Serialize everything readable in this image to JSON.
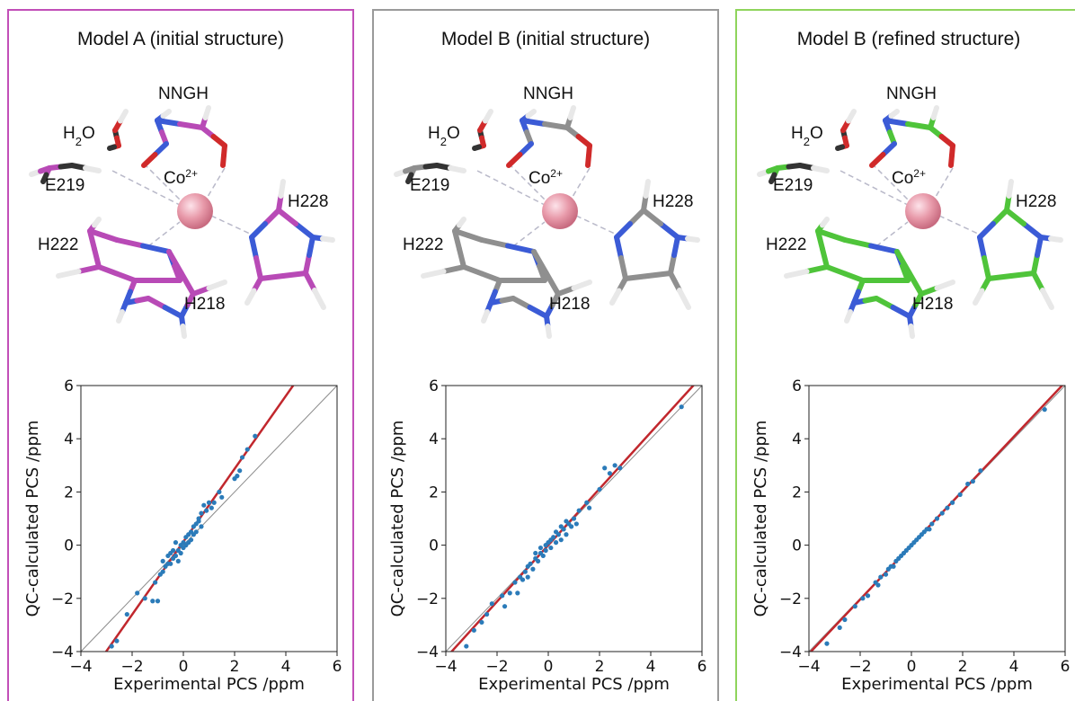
{
  "panels": [
    {
      "title": "Model A (initial structure)",
      "border_color": "#c24fb8",
      "accent_color": "#b84ab6",
      "molecule_labels": {
        "ligand": "NNGH",
        "water": "H2O",
        "metal": "Co2+",
        "e219": "E219",
        "h222": "H222",
        "h228": "H228",
        "h218": "H218"
      }
    },
    {
      "title": "Model B (initial structure)",
      "border_color": "#9a9a9a",
      "accent_color": "#8f8f8f",
      "molecule_labels": {
        "ligand": "NNGH",
        "water": "H2O",
        "metal": "Co2+",
        "e219": "E219",
        "h222": "H222",
        "h228": "H228",
        "h218": "H218"
      }
    },
    {
      "title": "Model B (refined structure)",
      "border_color": "#8fd45c",
      "accent_color": "#4fc43a",
      "molecule_labels": {
        "ligand": "NNGH",
        "water": "H2O",
        "metal": "Co2+",
        "e219": "E219",
        "h222": "H222",
        "h228": "H228",
        "h218": "H218"
      }
    }
  ],
  "colors": {
    "points": "#2b7bb9",
    "fit_line": "#c1272d",
    "identity_line": "#8a8a8a",
    "nitrogen": "#3b5bd6",
    "oxygen": "#d02a2a",
    "hydrogen": "#e8e8e8",
    "metal": "#e89aaa"
  },
  "chart_data": [
    {
      "type": "scatter",
      "xlabel": "Experimental PCS /ppm",
      "ylabel": "QC-calculated PCS /ppm",
      "xlim": [
        -4,
        6
      ],
      "ylim": [
        -4,
        6
      ],
      "xticks": [
        "−4",
        "−2",
        "0",
        "2",
        "4",
        "6"
      ],
      "yticks": [
        "−4",
        "−2",
        "0",
        "2",
        "4",
        "6"
      ],
      "fit_line": {
        "slope": 1.37,
        "intercept": 0.13
      },
      "identity_line": true,
      "points": [
        [
          -2.8,
          -3.8
        ],
        [
          -2.6,
          -3.6
        ],
        [
          -2.2,
          -2.6
        ],
        [
          -1.8,
          -1.8
        ],
        [
          -1.5,
          -2.0
        ],
        [
          -1.2,
          -2.1
        ],
        [
          -1.1,
          -1.4
        ],
        [
          -1.0,
          -2.1
        ],
        [
          -0.9,
          -1.1
        ],
        [
          -0.8,
          -1.0
        ],
        [
          -0.8,
          -0.6
        ],
        [
          -0.7,
          -0.8
        ],
        [
          -0.6,
          -0.7
        ],
        [
          -0.6,
          -0.4
        ],
        [
          -0.5,
          -0.7
        ],
        [
          -0.5,
          -0.3
        ],
        [
          -0.4,
          -0.5
        ],
        [
          -0.4,
          -0.2
        ],
        [
          -0.3,
          -0.4
        ],
        [
          -0.3,
          0.1
        ],
        [
          -0.2,
          -0.2
        ],
        [
          -0.2,
          -0.6
        ],
        [
          -0.1,
          0.0
        ],
        [
          -0.1,
          -0.3
        ],
        [
          0.0,
          0.1
        ],
        [
          0.0,
          -0.1
        ],
        [
          0.1,
          0.3
        ],
        [
          0.1,
          0.0
        ],
        [
          0.2,
          0.4
        ],
        [
          0.2,
          0.1
        ],
        [
          0.3,
          0.5
        ],
        [
          0.3,
          0.2
        ],
        [
          0.4,
          0.7
        ],
        [
          0.4,
          0.4
        ],
        [
          0.5,
          0.8
        ],
        [
          0.5,
          0.5
        ],
        [
          0.6,
          0.9
        ],
        [
          0.6,
          1.0
        ],
        [
          0.7,
          1.2
        ],
        [
          0.7,
          0.7
        ],
        [
          0.8,
          1.5
        ],
        [
          0.9,
          1.3
        ],
        [
          1.0,
          1.6
        ],
        [
          1.1,
          1.4
        ],
        [
          1.2,
          1.6
        ],
        [
          1.4,
          2.0
        ],
        [
          1.5,
          1.8
        ],
        [
          2.0,
          2.5
        ],
        [
          2.1,
          2.6
        ],
        [
          2.2,
          2.8
        ],
        [
          2.3,
          3.3
        ],
        [
          2.5,
          3.6
        ],
        [
          2.8,
          4.1
        ]
      ]
    },
    {
      "type": "scatter",
      "xlabel": "Experimental PCS /ppm",
      "ylabel": "QC-calculated PCS /ppm",
      "xlim": [
        -4,
        6
      ],
      "ylim": [
        -4,
        6
      ],
      "xticks": [
        "−4",
        "−2",
        "0",
        "2",
        "4",
        "6"
      ],
      "yticks": [
        "−4",
        "−2",
        "0",
        "2",
        "4",
        "6"
      ],
      "fit_line": {
        "slope": 1.06,
        "intercept": 0.0
      },
      "identity_line": true,
      "points": [
        [
          -3.2,
          -3.8
        ],
        [
          -2.9,
          -3.2
        ],
        [
          -2.6,
          -2.9
        ],
        [
          -2.4,
          -2.6
        ],
        [
          -2.2,
          -2.2
        ],
        [
          -1.8,
          -1.9
        ],
        [
          -1.7,
          -2.3
        ],
        [
          -1.5,
          -1.8
        ],
        [
          -1.3,
          -1.4
        ],
        [
          -1.2,
          -1.8
        ],
        [
          -1.1,
          -1.2
        ],
        [
          -1.0,
          -1.3
        ],
        [
          -0.9,
          -1.0
        ],
        [
          -0.8,
          -0.8
        ],
        [
          -0.8,
          -1.2
        ],
        [
          -0.7,
          -0.7
        ],
        [
          -0.6,
          -0.9
        ],
        [
          -0.5,
          -0.5
        ],
        [
          -0.5,
          -0.3
        ],
        [
          -0.4,
          -0.6
        ],
        [
          -0.3,
          -0.3
        ],
        [
          -0.3,
          -0.1
        ],
        [
          -0.2,
          -0.4
        ],
        [
          -0.1,
          0.0
        ],
        [
          -0.1,
          -0.2
        ],
        [
          0.0,
          0.1
        ],
        [
          0.1,
          -0.1
        ],
        [
          0.1,
          0.2
        ],
        [
          0.2,
          0.3
        ],
        [
          0.3,
          0.1
        ],
        [
          0.3,
          0.5
        ],
        [
          0.4,
          0.4
        ],
        [
          0.5,
          0.7
        ],
        [
          0.5,
          0.2
        ],
        [
          0.6,
          0.6
        ],
        [
          0.7,
          0.9
        ],
        [
          0.7,
          0.4
        ],
        [
          0.8,
          0.8
        ],
        [
          0.9,
          0.7
        ],
        [
          1.0,
          1.0
        ],
        [
          1.1,
          0.8
        ],
        [
          1.2,
          1.3
        ],
        [
          1.5,
          1.6
        ],
        [
          1.6,
          1.4
        ],
        [
          2.0,
          2.1
        ],
        [
          2.2,
          2.9
        ],
        [
          2.4,
          2.7
        ],
        [
          2.6,
          3.0
        ],
        [
          2.8,
          2.9
        ],
        [
          5.2,
          5.2
        ]
      ]
    },
    {
      "type": "scatter",
      "xlabel": "Experimental PCS /ppm",
      "ylabel": "QC-calculated PCS /ppm",
      "xlim": [
        -4,
        6
      ],
      "ylim": [
        -4,
        6
      ],
      "xticks": [
        "−4",
        "−2",
        "0",
        "2",
        "4",
        "6"
      ],
      "yticks": [
        "−4",
        "−2",
        "0",
        "2",
        "4",
        "6"
      ],
      "fit_line": {
        "slope": 1.02,
        "intercept": 0.0
      },
      "identity_line": true,
      "points": [
        [
          -3.3,
          -3.7
        ],
        [
          -2.8,
          -3.1
        ],
        [
          -2.6,
          -2.8
        ],
        [
          -2.2,
          -2.3
        ],
        [
          -1.9,
          -2.0
        ],
        [
          -1.7,
          -1.9
        ],
        [
          -1.4,
          -1.4
        ],
        [
          -1.3,
          -1.5
        ],
        [
          -1.2,
          -1.2
        ],
        [
          -1.0,
          -1.1
        ],
        [
          -0.9,
          -0.9
        ],
        [
          -0.8,
          -0.8
        ],
        [
          -0.7,
          -0.8
        ],
        [
          -0.6,
          -0.6
        ],
        [
          -0.5,
          -0.5
        ],
        [
          -0.4,
          -0.4
        ],
        [
          -0.3,
          -0.3
        ],
        [
          -0.2,
          -0.2
        ],
        [
          -0.1,
          -0.1
        ],
        [
          0.0,
          0.0
        ],
        [
          0.1,
          0.1
        ],
        [
          0.2,
          0.2
        ],
        [
          0.3,
          0.3
        ],
        [
          0.4,
          0.4
        ],
        [
          0.5,
          0.5
        ],
        [
          0.6,
          0.6
        ],
        [
          0.7,
          0.6
        ],
        [
          0.8,
          0.8
        ],
        [
          1.0,
          1.0
        ],
        [
          1.2,
          1.2
        ],
        [
          1.4,
          1.4
        ],
        [
          1.6,
          1.6
        ],
        [
          1.9,
          1.9
        ],
        [
          2.2,
          2.3
        ],
        [
          2.4,
          2.4
        ],
        [
          2.7,
          2.8
        ],
        [
          5.2,
          5.1
        ]
      ]
    }
  ]
}
